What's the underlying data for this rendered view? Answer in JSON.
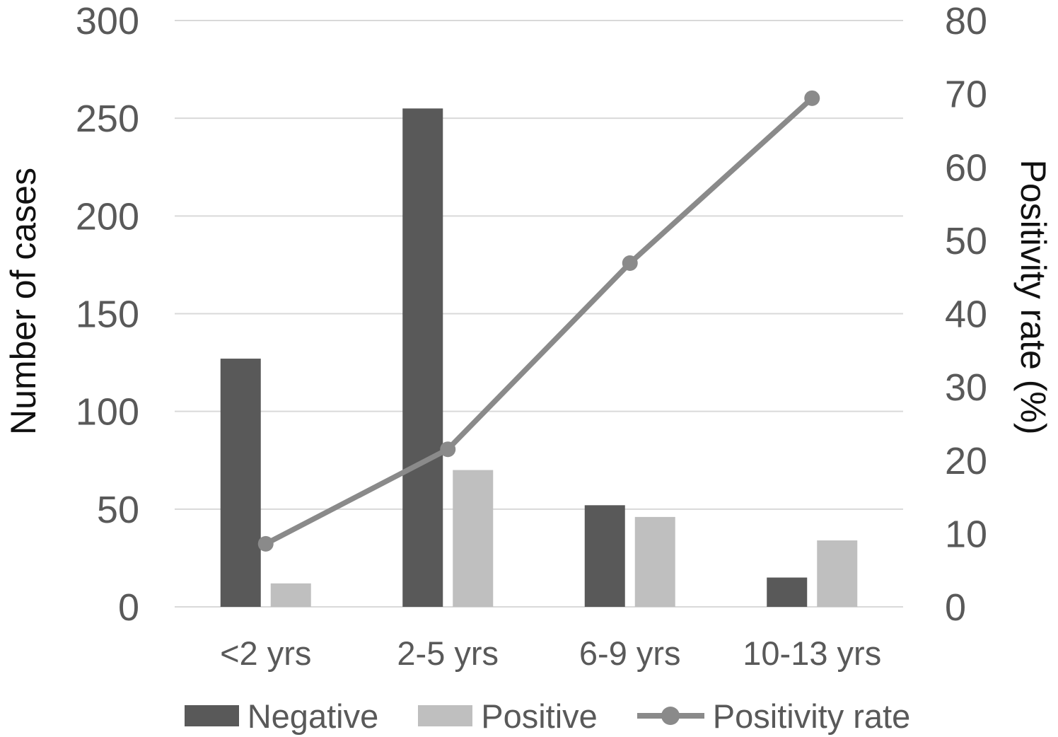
{
  "chart_data": {
    "type": "bar",
    "subtype": "grouped-bars-with-line",
    "title": "",
    "xlabel": "",
    "ylabel_left": "Number of cases",
    "ylabel_right": "Positivity rate (%)",
    "categories": [
      "<2 yrs",
      "2-5 yrs",
      "6-9 yrs",
      "10-13 yrs"
    ],
    "series": [
      {
        "name": "Negative",
        "type": "bar",
        "axis": "left",
        "color": "#595959",
        "values": [
          127,
          255,
          52,
          15
        ]
      },
      {
        "name": "Positive",
        "type": "bar",
        "axis": "left",
        "color": "#bfbfbf",
        "values": [
          12,
          70,
          46,
          34
        ]
      },
      {
        "name": "Positivity rate",
        "type": "line",
        "axis": "right",
        "color": "#8a8a8a",
        "values": [
          8.6,
          21.5,
          46.9,
          69.4
        ]
      }
    ],
    "left_axis": {
      "min": 0,
      "max": 300,
      "ticks": [
        0,
        50,
        100,
        150,
        200,
        250,
        300
      ]
    },
    "right_axis": {
      "min": 0,
      "max": 80,
      "ticks": [
        0,
        10,
        20,
        30,
        40,
        50,
        60,
        70,
        80
      ]
    },
    "grid": "horizontal",
    "legend_position": "bottom",
    "colors": {
      "gridline": "#d9d9d9",
      "tick_text": "#595959",
      "axis_title_text": "#111111",
      "background": "#ffffff"
    }
  }
}
